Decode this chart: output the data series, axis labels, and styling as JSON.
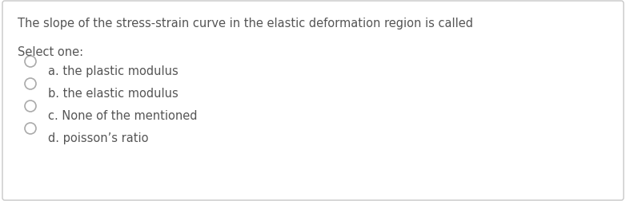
{
  "question": "The slope of the stress-strain curve in the elastic deformation region is called",
  "select_label": "Select one:",
  "options": [
    "a. the plastic modulus",
    "b. the elastic modulus",
    "c. None of the mentioned",
    "d. poisson’s ratio"
  ],
  "bg_color": "#ffffff",
  "border_color": "#c8c8c8",
  "text_color": "#555555",
  "circle_edge_color": "#aaaaaa",
  "question_fontsize": 10.5,
  "select_fontsize": 10.5,
  "option_fontsize": 10.5,
  "fig_width": 7.82,
  "fig_height": 2.52,
  "dpi": 100
}
